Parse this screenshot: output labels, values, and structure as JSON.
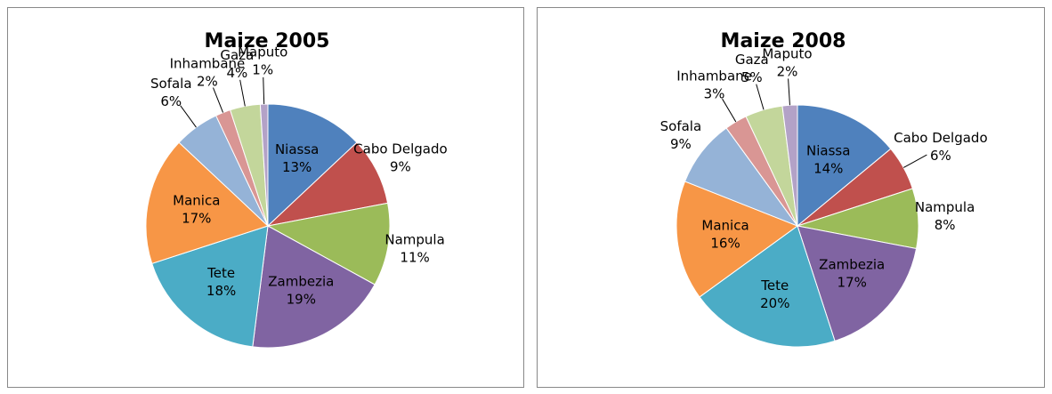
{
  "chart_data": [
    {
      "type": "pie",
      "title": "Maize 2005",
      "categories": [
        "Niassa",
        "Cabo Delgado",
        "Nampula",
        "Zambezia",
        "Tete",
        "Manica",
        "Sofala",
        "Inhambane",
        "Gaza",
        "Maputo"
      ],
      "values": [
        13,
        9,
        11,
        19,
        18,
        17,
        6,
        2,
        4,
        1
      ],
      "value_labels": [
        "13%",
        "9%",
        "11%",
        "19%",
        "18%",
        "17%",
        "6%",
        "2%",
        "4%",
        "1%"
      ],
      "colors": [
        "#4f81bd",
        "#c0504d",
        "#9bbb59",
        "#8064a2",
        "#4bacc6",
        "#f79646",
        "#95b3d7",
        "#d99694",
        "#c3d69b",
        "#b3a2c7"
      ]
    },
    {
      "type": "pie",
      "title": "Maize 2008",
      "categories": [
        "Niassa",
        "Cabo Delgado",
        "Nampula",
        "Zambezia",
        "Tete",
        "Manica",
        "Sofala",
        "Inhambane",
        "Gaza",
        "Maputo"
      ],
      "values": [
        14,
        6,
        8,
        17,
        20,
        16,
        9,
        3,
        5,
        2
      ],
      "value_labels": [
        "14%",
        "6%",
        "8%",
        "17%",
        "20%",
        "16%",
        "9%",
        "3%",
        "5%",
        "2%"
      ],
      "colors": [
        "#4f81bd",
        "#c0504d",
        "#9bbb59",
        "#8064a2",
        "#4bacc6",
        "#f79646",
        "#95b3d7",
        "#d99694",
        "#c3d69b",
        "#b3a2c7"
      ]
    }
  ]
}
